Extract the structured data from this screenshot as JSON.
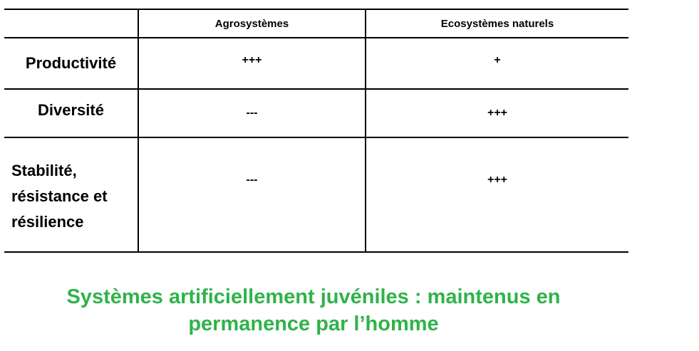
{
  "table": {
    "headers": [
      "",
      "Agrosystèmes",
      "Ecosystèmes naturels"
    ],
    "rows": [
      {
        "label": "Productivité",
        "agro": "+++",
        "natural": "+"
      },
      {
        "label": "Diversité",
        "agro": "---",
        "natural": "+++"
      },
      {
        "label_lines": [
          "Stabilité,",
          "résistance et",
          "résilience"
        ],
        "agro": "---",
        "natural": "+++"
      }
    ]
  },
  "caption": {
    "line1": "Systèmes artificiellement juvéniles : maintenus en",
    "line2": "permanence par l’homme",
    "color": "#2fb34a"
  }
}
